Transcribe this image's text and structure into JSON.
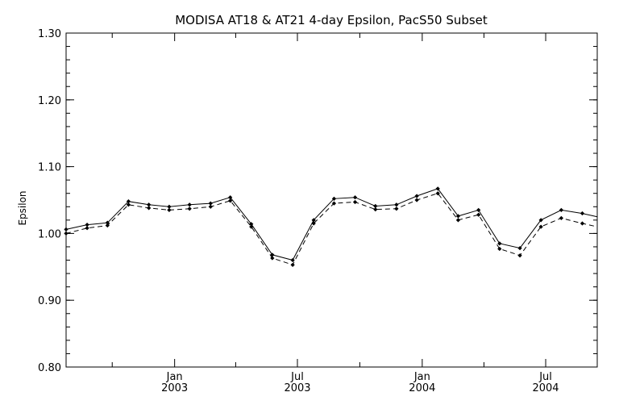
{
  "chart_data": {
    "type": "line",
    "title": "MODISA AT18 & AT21 4-day Epsilon, PacS50 Subset",
    "xlabel": "",
    "ylabel": "Epsilon",
    "ylim": [
      0.8,
      1.3
    ],
    "yticks": [
      "0.80",
      "0.90",
      "1.00",
      "1.10",
      "1.20",
      "1.30"
    ],
    "xlim": [
      "2002-07-25",
      "2004-09-15"
    ],
    "xticks": [
      {
        "date": "2003-01-01",
        "month": "Jan",
        "year": "2003"
      },
      {
        "date": "2003-07-01",
        "month": "Jul",
        "year": "2003"
      },
      {
        "date": "2004-01-01",
        "month": "Jan",
        "year": "2004"
      },
      {
        "date": "2004-07-01",
        "month": "Jul",
        "year": "2004"
      }
    ],
    "minor_xticks": [
      "2002-10-01",
      "2003-04-01",
      "2003-10-01",
      "2004-04-01"
    ],
    "grid": false,
    "series": [
      {
        "style": "solid",
        "x": [
          "2002-07-25",
          "2002-08-25",
          "2002-09-24",
          "2002-10-25",
          "2002-11-24",
          "2002-12-24",
          "2003-01-23",
          "2003-02-23",
          "2003-03-24",
          "2003-04-24",
          "2003-05-25",
          "2003-06-24",
          "2003-07-25",
          "2003-08-24",
          "2003-09-24",
          "2003-10-24",
          "2003-11-24",
          "2003-12-24",
          "2004-01-24",
          "2004-02-23",
          "2004-03-24",
          "2004-04-24",
          "2004-05-24",
          "2004-06-24",
          "2004-07-24",
          "2004-08-24",
          "2004-09-15"
        ],
        "y": [
          1.006,
          1.013,
          1.016,
          1.048,
          1.043,
          1.04,
          1.043,
          1.045,
          1.054,
          1.014,
          0.968,
          0.96,
          1.02,
          1.052,
          1.054,
          1.041,
          1.043,
          1.056,
          1.067,
          1.026,
          1.035,
          0.985,
          0.978,
          1.02,
          1.035,
          1.03,
          1.025
        ]
      },
      {
        "style": "dashed",
        "x": [
          "2002-07-25",
          "2002-08-25",
          "2002-09-24",
          "2002-10-25",
          "2002-11-24",
          "2002-12-24",
          "2003-01-23",
          "2003-02-23",
          "2003-03-24",
          "2003-04-24",
          "2003-05-25",
          "2003-06-24",
          "2003-07-25",
          "2003-08-24",
          "2003-09-24",
          "2003-10-24",
          "2003-11-24",
          "2003-12-24",
          "2004-01-24",
          "2004-02-23",
          "2004-03-24",
          "2004-04-24",
          "2004-05-24",
          "2004-06-24",
          "2004-07-24",
          "2004-08-24",
          "2004-09-15"
        ],
        "y": [
          1.0,
          1.008,
          1.012,
          1.043,
          1.038,
          1.035,
          1.037,
          1.04,
          1.049,
          1.01,
          0.963,
          0.953,
          1.015,
          1.045,
          1.047,
          1.036,
          1.037,
          1.05,
          1.06,
          1.02,
          1.028,
          0.977,
          0.967,
          1.01,
          1.023,
          1.015,
          1.01
        ]
      }
    ]
  }
}
